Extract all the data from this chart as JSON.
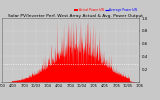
{
  "title": "Solar PV/Inverter Perf. West Array Actual & Avg. Power Output",
  "title_fontsize": 3.2,
  "bg_color": "#c8c8c8",
  "plot_bg_color": "#c8c8c8",
  "bar_color": "#ff0000",
  "avg_line_color": "#ffffff",
  "ylim": [
    0,
    1.0
  ],
  "ylabel_fontsize": 2.8,
  "xlabel_fontsize": 2.5,
  "ytick_labels": [
    "",
    "0.2",
    "0.4",
    "0.6",
    "0.8",
    "1.0"
  ],
  "yticks": [
    0.0,
    0.2,
    0.4,
    0.6,
    0.8,
    1.0
  ],
  "avg_value": 0.28,
  "legend_actual_color": "#ff0000",
  "legend_avg_color": "#0000ff",
  "legend_fontsize": 2.2,
  "num_points": 700,
  "seed": 99
}
